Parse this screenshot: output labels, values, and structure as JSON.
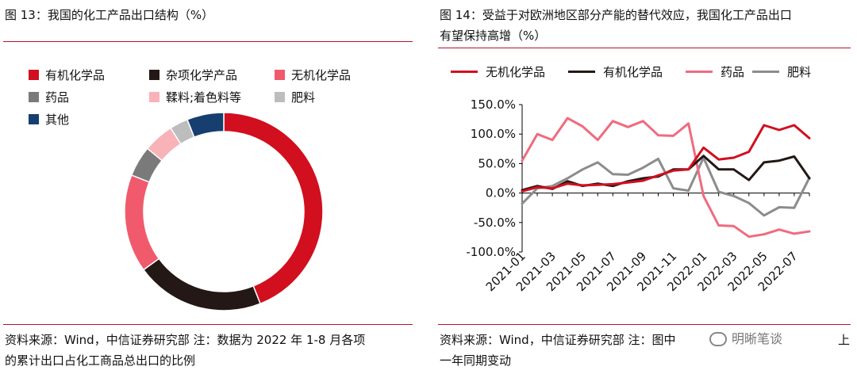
{
  "left": {
    "title": "图 13：我国的化工产品出口结构（%）",
    "source_line1": "资料来源：Wind，中信证券研究部 注：数据为 2022 年 1-8 月各项",
    "source_line2": "的累计出口占化工商品总出口的比例"
  },
  "right": {
    "title_line1": "图 14：受益于对欧洲地区部分产能的替代效应，我国化工产品出口",
    "title_line2": "有望保持高增（%）",
    "source_line1": "资料来源：Wind，中信证券研究部 注：图中",
    "source_line2": "一年同期变动",
    "source_tail": "上"
  },
  "watermark": "明晰笔谈",
  "chart_data": [
    {
      "type": "pie",
      "donut": true,
      "legend_position": "top",
      "slices": [
        {
          "label": "有机化学品",
          "value": 44,
          "color": "#d10f1f"
        },
        {
          "label": "杂项化学产品",
          "value": 21,
          "color": "#231815"
        },
        {
          "label": "无机化学品",
          "value": 16,
          "color": "#f05a6c"
        },
        {
          "label": "药品",
          "value": 5,
          "color": "#7a7a7a"
        },
        {
          "label": "鞣料;着色料等",
          "value": 5,
          "color": "#f7b3b8"
        },
        {
          "label": "肥料",
          "value": 3,
          "color": "#bdbdbd"
        },
        {
          "label": "其他",
          "value": 6,
          "color": "#163e6e"
        }
      ]
    },
    {
      "type": "line",
      "legend_position": "top",
      "grid": false,
      "ylim": [
        -100,
        150
      ],
      "yticks": [
        "150.0%",
        "100.0%",
        "50.0%",
        "0.0%",
        "-50.0%",
        "-100.0%"
      ],
      "ytick_values": [
        150,
        100,
        50,
        0,
        -50,
        -100
      ],
      "x": [
        "2021-01",
        "2021-02",
        "2021-03",
        "2021-04",
        "2021-05",
        "2021-06",
        "2021-07",
        "2021-08",
        "2021-09",
        "2021-10",
        "2021-11",
        "2021-12",
        "2022-01",
        "2022-02",
        "2022-03",
        "2022-04",
        "2022-05",
        "2022-06",
        "2022-07",
        "2022-08"
      ],
      "xticks": [
        "2021-01",
        "2021-03",
        "2021-05",
        "2021-07",
        "2021-09",
        "2021-11",
        "2022-01",
        "2022-03",
        "2022-05",
        "2022-07"
      ],
      "series": [
        {
          "name": "无机化学品",
          "color": "#d10f1f",
          "values": [
            3,
            10,
            8,
            16,
            13,
            14,
            15,
            18,
            21,
            30,
            38,
            40,
            77,
            57,
            60,
            70,
            115,
            107,
            115,
            93
          ]
        },
        {
          "name": "有机化学品",
          "color": "#231815",
          "values": [
            5,
            12,
            7,
            20,
            12,
            16,
            12,
            20,
            25,
            28,
            40,
            40,
            63,
            40,
            40,
            22,
            52,
            55,
            62,
            25
          ]
        },
        {
          "name": "药品",
          "color": "#f06b7e",
          "values": [
            55,
            100,
            90,
            127,
            113,
            90,
            122,
            112,
            122,
            98,
            97,
            118,
            -5,
            -55,
            -56,
            -74,
            -70,
            -62,
            -69,
            -65
          ]
        },
        {
          "name": "肥料",
          "color": "#8c8c8c",
          "values": [
            -18,
            8,
            12,
            25,
            40,
            52,
            32,
            31,
            43,
            58,
            8,
            4,
            60,
            2,
            -5,
            -17,
            -38,
            -24,
            -25,
            26
          ]
        }
      ]
    }
  ]
}
